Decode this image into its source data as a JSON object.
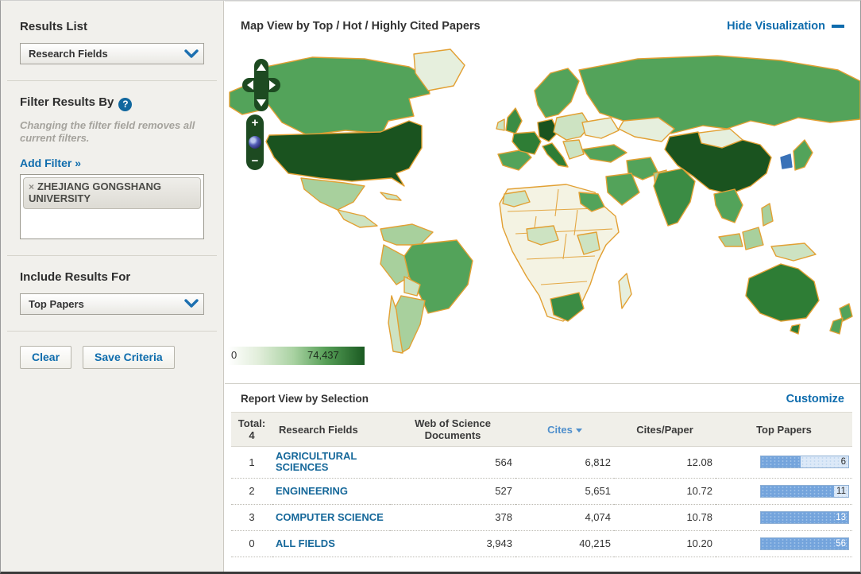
{
  "sidebar": {
    "results_list": {
      "label": "Results List",
      "dropdown_value": "Research Fields"
    },
    "filter": {
      "label": "Filter Results By",
      "help_icon": "?",
      "note": "Changing the filter field removes all current filters.",
      "add_filter_label": "Add Filter »",
      "chips": [
        {
          "remove_icon": "×",
          "label": "ZHEJIANG GONGSHANG UNIVERSITY"
        }
      ]
    },
    "include": {
      "label": "Include Results For",
      "dropdown_value": "Top Papers"
    },
    "buttons": {
      "clear": "Clear",
      "save": "Save Criteria"
    }
  },
  "map_section": {
    "title": "Map View by Top / Hot / Highly Cited Papers",
    "hide_link": "Hide Visualization",
    "controls": {
      "zoom_in": "+",
      "zoom_out": "−"
    },
    "legend": {
      "min": "0",
      "max": "74,437"
    },
    "palette": {
      "no_data": "#f4f3e3",
      "low": "#cde3c2",
      "mid": "#53a35a",
      "high": "#2e7d35",
      "max": "#1a531f",
      "border": "#e2a033",
      "highlight_country": "#3a72b8"
    }
  },
  "report_section": {
    "title": "Report View by Selection",
    "customize_link": "Customize",
    "table": {
      "total_label": "Total:",
      "total_value": "4",
      "columns": {
        "field": "Research Fields",
        "documents": "Web of Science Documents",
        "cites": "Cites",
        "cites_per_paper": "Cites/Paper",
        "top_papers": "Top Papers"
      },
      "sort_column": "Cites",
      "sort_direction": "desc",
      "rows": [
        {
          "rank": "1",
          "field": "AGRICULTURAL SCIENCES",
          "documents": "564",
          "cites": "6,812",
          "cites_per_paper": "12.08",
          "top_papers": "6",
          "bar_percent": 45
        },
        {
          "rank": "2",
          "field": "ENGINEERING",
          "documents": "527",
          "cites": "5,651",
          "cites_per_paper": "10.72",
          "top_papers": "11",
          "bar_percent": 84
        },
        {
          "rank": "3",
          "field": "COMPUTER SCIENCE",
          "documents": "378",
          "cites": "4,074",
          "cites_per_paper": "10.78",
          "top_papers": "13",
          "bar_percent": 100
        },
        {
          "rank": "0",
          "field": "ALL FIELDS",
          "documents": "3,943",
          "cites": "40,215",
          "cites_per_paper": "10.20",
          "top_papers": "56",
          "bar_percent": 100
        }
      ]
    }
  }
}
